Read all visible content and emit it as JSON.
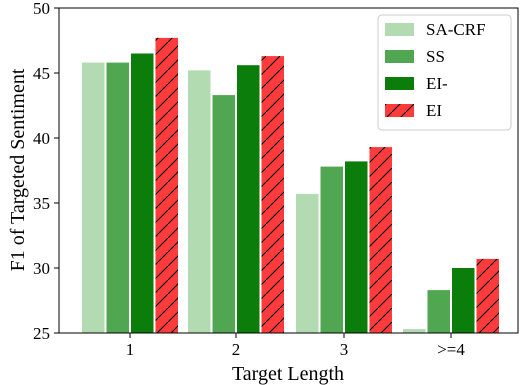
{
  "chart_data": {
    "type": "bar",
    "categories": [
      "1",
      "2",
      "3",
      ">=4"
    ],
    "series": [
      {
        "name": "SA-CRF",
        "color": "#b2dbb2",
        "hatch": false,
        "values": [
          45.8,
          45.2,
          35.7,
          25.3
        ]
      },
      {
        "name": "SS",
        "color": "#51a651",
        "hatch": false,
        "values": [
          45.8,
          43.3,
          37.8,
          28.3
        ]
      },
      {
        "name": "EI-",
        "color": "#0b7d0b",
        "hatch": false,
        "values": [
          46.5,
          45.6,
          38.2,
          30.0
        ]
      },
      {
        "name": "EI",
        "color": "#ff3b3b",
        "hatch": true,
        "values": [
          47.7,
          46.3,
          39.3,
          30.7
        ]
      }
    ],
    "xlabel": "Target Length",
    "ylabel": "F1 of Targeted Sentiment",
    "ylim": [
      25,
      50
    ],
    "yticks": [
      "25",
      "30",
      "35",
      "40",
      "45",
      "50"
    ],
    "legend_position": "top-right",
    "grid": false
  }
}
